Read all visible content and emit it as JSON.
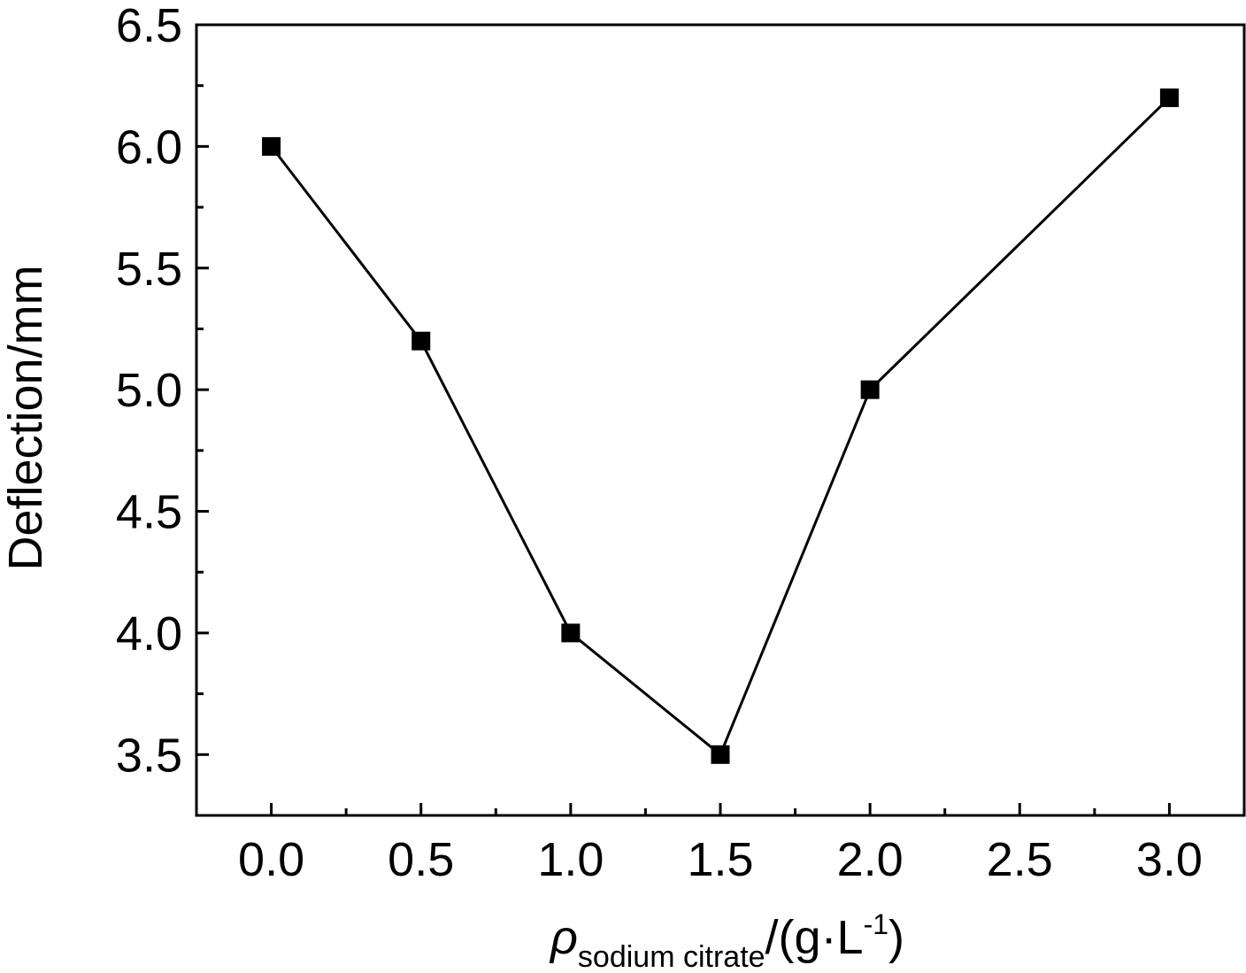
{
  "chart_data": {
    "type": "line",
    "title": "",
    "x": [
      0.0,
      0.5,
      1.0,
      1.5,
      2.0,
      3.0
    ],
    "series": [
      {
        "values": [
          6.0,
          5.2,
          4.0,
          3.5,
          5.0,
          6.2
        ],
        "marker": "square",
        "color": "#000000"
      }
    ],
    "xlabel": {
      "symbol": "ρ",
      "subscript": "sodium citrate",
      "unit_prefix": "/(g·L",
      "superscript": "-1",
      "unit_suffix": ")"
    },
    "ylabel": "Deflection/mm",
    "xlim": [
      -0.25,
      3.25
    ],
    "ylim": [
      3.25,
      6.5
    ],
    "xticks": [
      0.0,
      0.5,
      1.0,
      1.5,
      2.0,
      2.5,
      3.0
    ],
    "xtick_labels": [
      "0.0",
      "0.5",
      "1.0",
      "1.5",
      "2.0",
      "2.5",
      "3.0"
    ],
    "yticks": [
      3.5,
      4.0,
      4.5,
      5.0,
      5.5,
      6.0,
      6.5
    ],
    "ytick_labels": [
      "3.5",
      "4.0",
      "4.5",
      "5.0",
      "5.5",
      "6.0",
      "6.5"
    ],
    "grid": false,
    "legend": "none"
  }
}
